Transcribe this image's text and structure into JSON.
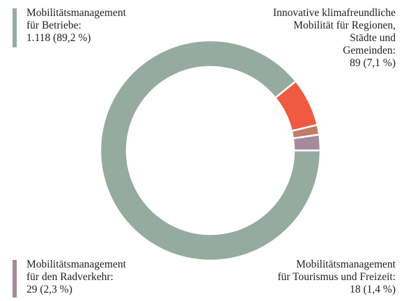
{
  "chart_data": {
    "type": "donut",
    "categories": [
      "Innovative klimafreundliche\nMobilität für Regionen,\nStädte und\nGemeinden:",
      "Mobilitätsmanagement\nfür Tourismus und Freizeit:",
      "Mobilitätsmanagement\nfür den Radverkehr:",
      "Mobilitätsmanagement\nfür Betriebe:"
    ],
    "values": [
      89,
      18,
      29,
      1118
    ],
    "value_labels": [
      "89 (7,1 %)",
      "18 (1,4 %)",
      "29 (2,3 %)",
      "1.118 (89,2 %)"
    ],
    "colors": [
      "#ef5a40",
      "#c17d68",
      "#a58a9b",
      "#95ab9f"
    ]
  }
}
